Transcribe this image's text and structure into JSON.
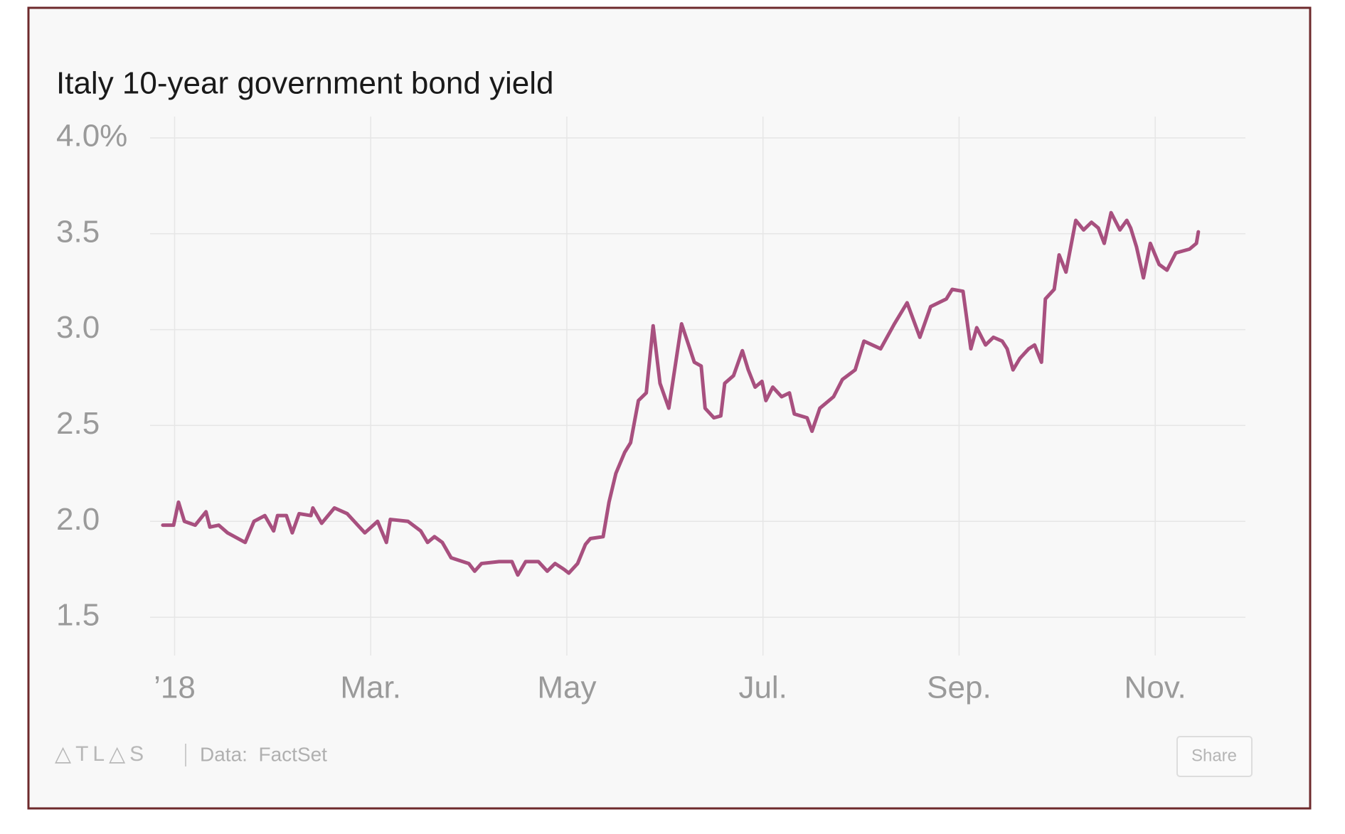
{
  "chart_data": {
    "type": "line",
    "title": "Italy 10-year government bond yield",
    "color": "#a8507f",
    "grid": true,
    "x": [
      -0.12,
      -0.01,
      0.04,
      0.1,
      0.21,
      0.32,
      0.36,
      0.45,
      0.54,
      0.72,
      0.81,
      0.92,
      1.01,
      1.05,
      1.14,
      1.2,
      1.27,
      1.39,
      1.41,
      1.5,
      1.63,
      1.76,
      1.94,
      2.07,
      2.16,
      2.2,
      2.38,
      2.51,
      2.58,
      2.65,
      2.73,
      2.82,
      3.0,
      3.06,
      3.13,
      3.31,
      3.44,
      3.5,
      3.58,
      3.71,
      3.8,
      3.88,
      3.97,
      4.02,
      4.11,
      4.19,
      4.24,
      4.37,
      4.43,
      4.5,
      4.59,
      4.65,
      4.73,
      4.81,
      4.88,
      4.95,
      5.04,
      5.17,
      5.3,
      5.37,
      5.41,
      5.5,
      5.57,
      5.61,
      5.7,
      5.79,
      5.85,
      5.92,
      5.99,
      6.03,
      6.1,
      6.19,
      6.27,
      6.32,
      6.45,
      6.5,
      6.58,
      6.72,
      6.81,
      6.94,
      7.03,
      7.2,
      7.34,
      7.47,
      7.6,
      7.71,
      7.87,
      7.93,
      8.04,
      8.12,
      8.18,
      8.27,
      8.35,
      8.44,
      8.49,
      8.55,
      8.62,
      8.71,
      8.77,
      8.84,
      8.88,
      8.97,
      9.02,
      9.09,
      9.19,
      9.27,
      9.35,
      9.42,
      9.48,
      9.55,
      9.64,
      9.71,
      9.75,
      9.81,
      9.88,
      9.95,
      10.04,
      10.12,
      10.21,
      10.35,
      10.42,
      10.44
    ],
    "values": [
      1.98,
      1.98,
      2.1,
      2.0,
      1.98,
      2.05,
      1.97,
      1.98,
      1.94,
      1.89,
      2.0,
      2.03,
      1.95,
      2.03,
      2.03,
      1.94,
      2.04,
      2.03,
      2.07,
      1.99,
      2.07,
      2.04,
      1.94,
      2.0,
      1.89,
      2.01,
      2.0,
      1.95,
      1.89,
      1.92,
      1.89,
      1.81,
      1.78,
      1.74,
      1.78,
      1.79,
      1.79,
      1.72,
      1.79,
      1.79,
      1.74,
      1.78,
      1.75,
      1.73,
      1.78,
      1.88,
      1.91,
      1.92,
      2.1,
      2.25,
      2.36,
      2.41,
      2.63,
      2.67,
      3.02,
      2.72,
      2.59,
      3.03,
      2.83,
      2.81,
      2.59,
      2.54,
      2.55,
      2.72,
      2.76,
      2.89,
      2.79,
      2.7,
      2.73,
      2.63,
      2.7,
      2.65,
      2.67,
      2.56,
      2.54,
      2.47,
      2.59,
      2.65,
      2.74,
      2.79,
      2.94,
      2.9,
      3.03,
      3.14,
      2.96,
      3.12,
      3.16,
      3.21,
      3.2,
      2.9,
      3.01,
      2.92,
      2.96,
      2.94,
      2.9,
      2.79,
      2.85,
      2.9,
      2.92,
      2.83,
      3.16,
      3.21,
      3.39,
      3.3,
      3.57,
      3.52,
      3.56,
      3.53,
      3.45,
      3.61,
      3.52,
      3.57,
      3.53,
      3.43,
      3.27,
      3.45,
      3.34,
      3.31,
      3.4,
      3.42,
      3.45,
      3.51
    ],
    "xlim": [
      -0.25,
      10.92
    ],
    "xticks": [
      {
        "value": 0,
        "label": "’18"
      },
      {
        "value": 2,
        "label": "Mar."
      },
      {
        "value": 4,
        "label": "May"
      },
      {
        "value": 6,
        "label": "Jul."
      },
      {
        "value": 8,
        "label": "Sep."
      },
      {
        "value": 10,
        "label": "Nov."
      }
    ],
    "ylim": [
      1.3,
      4.1
    ],
    "yticks": [
      1.5,
      {
        "value": 2,
        "label": "2.0"
      },
      2.5,
      {
        "value": 3,
        "label": "3.0"
      },
      3.5,
      {
        "value": 4,
        "label": "4.0%"
      }
    ]
  },
  "footer": {
    "logo": "△TL△S",
    "source": "Data:  FactSet",
    "share": "Share"
  }
}
